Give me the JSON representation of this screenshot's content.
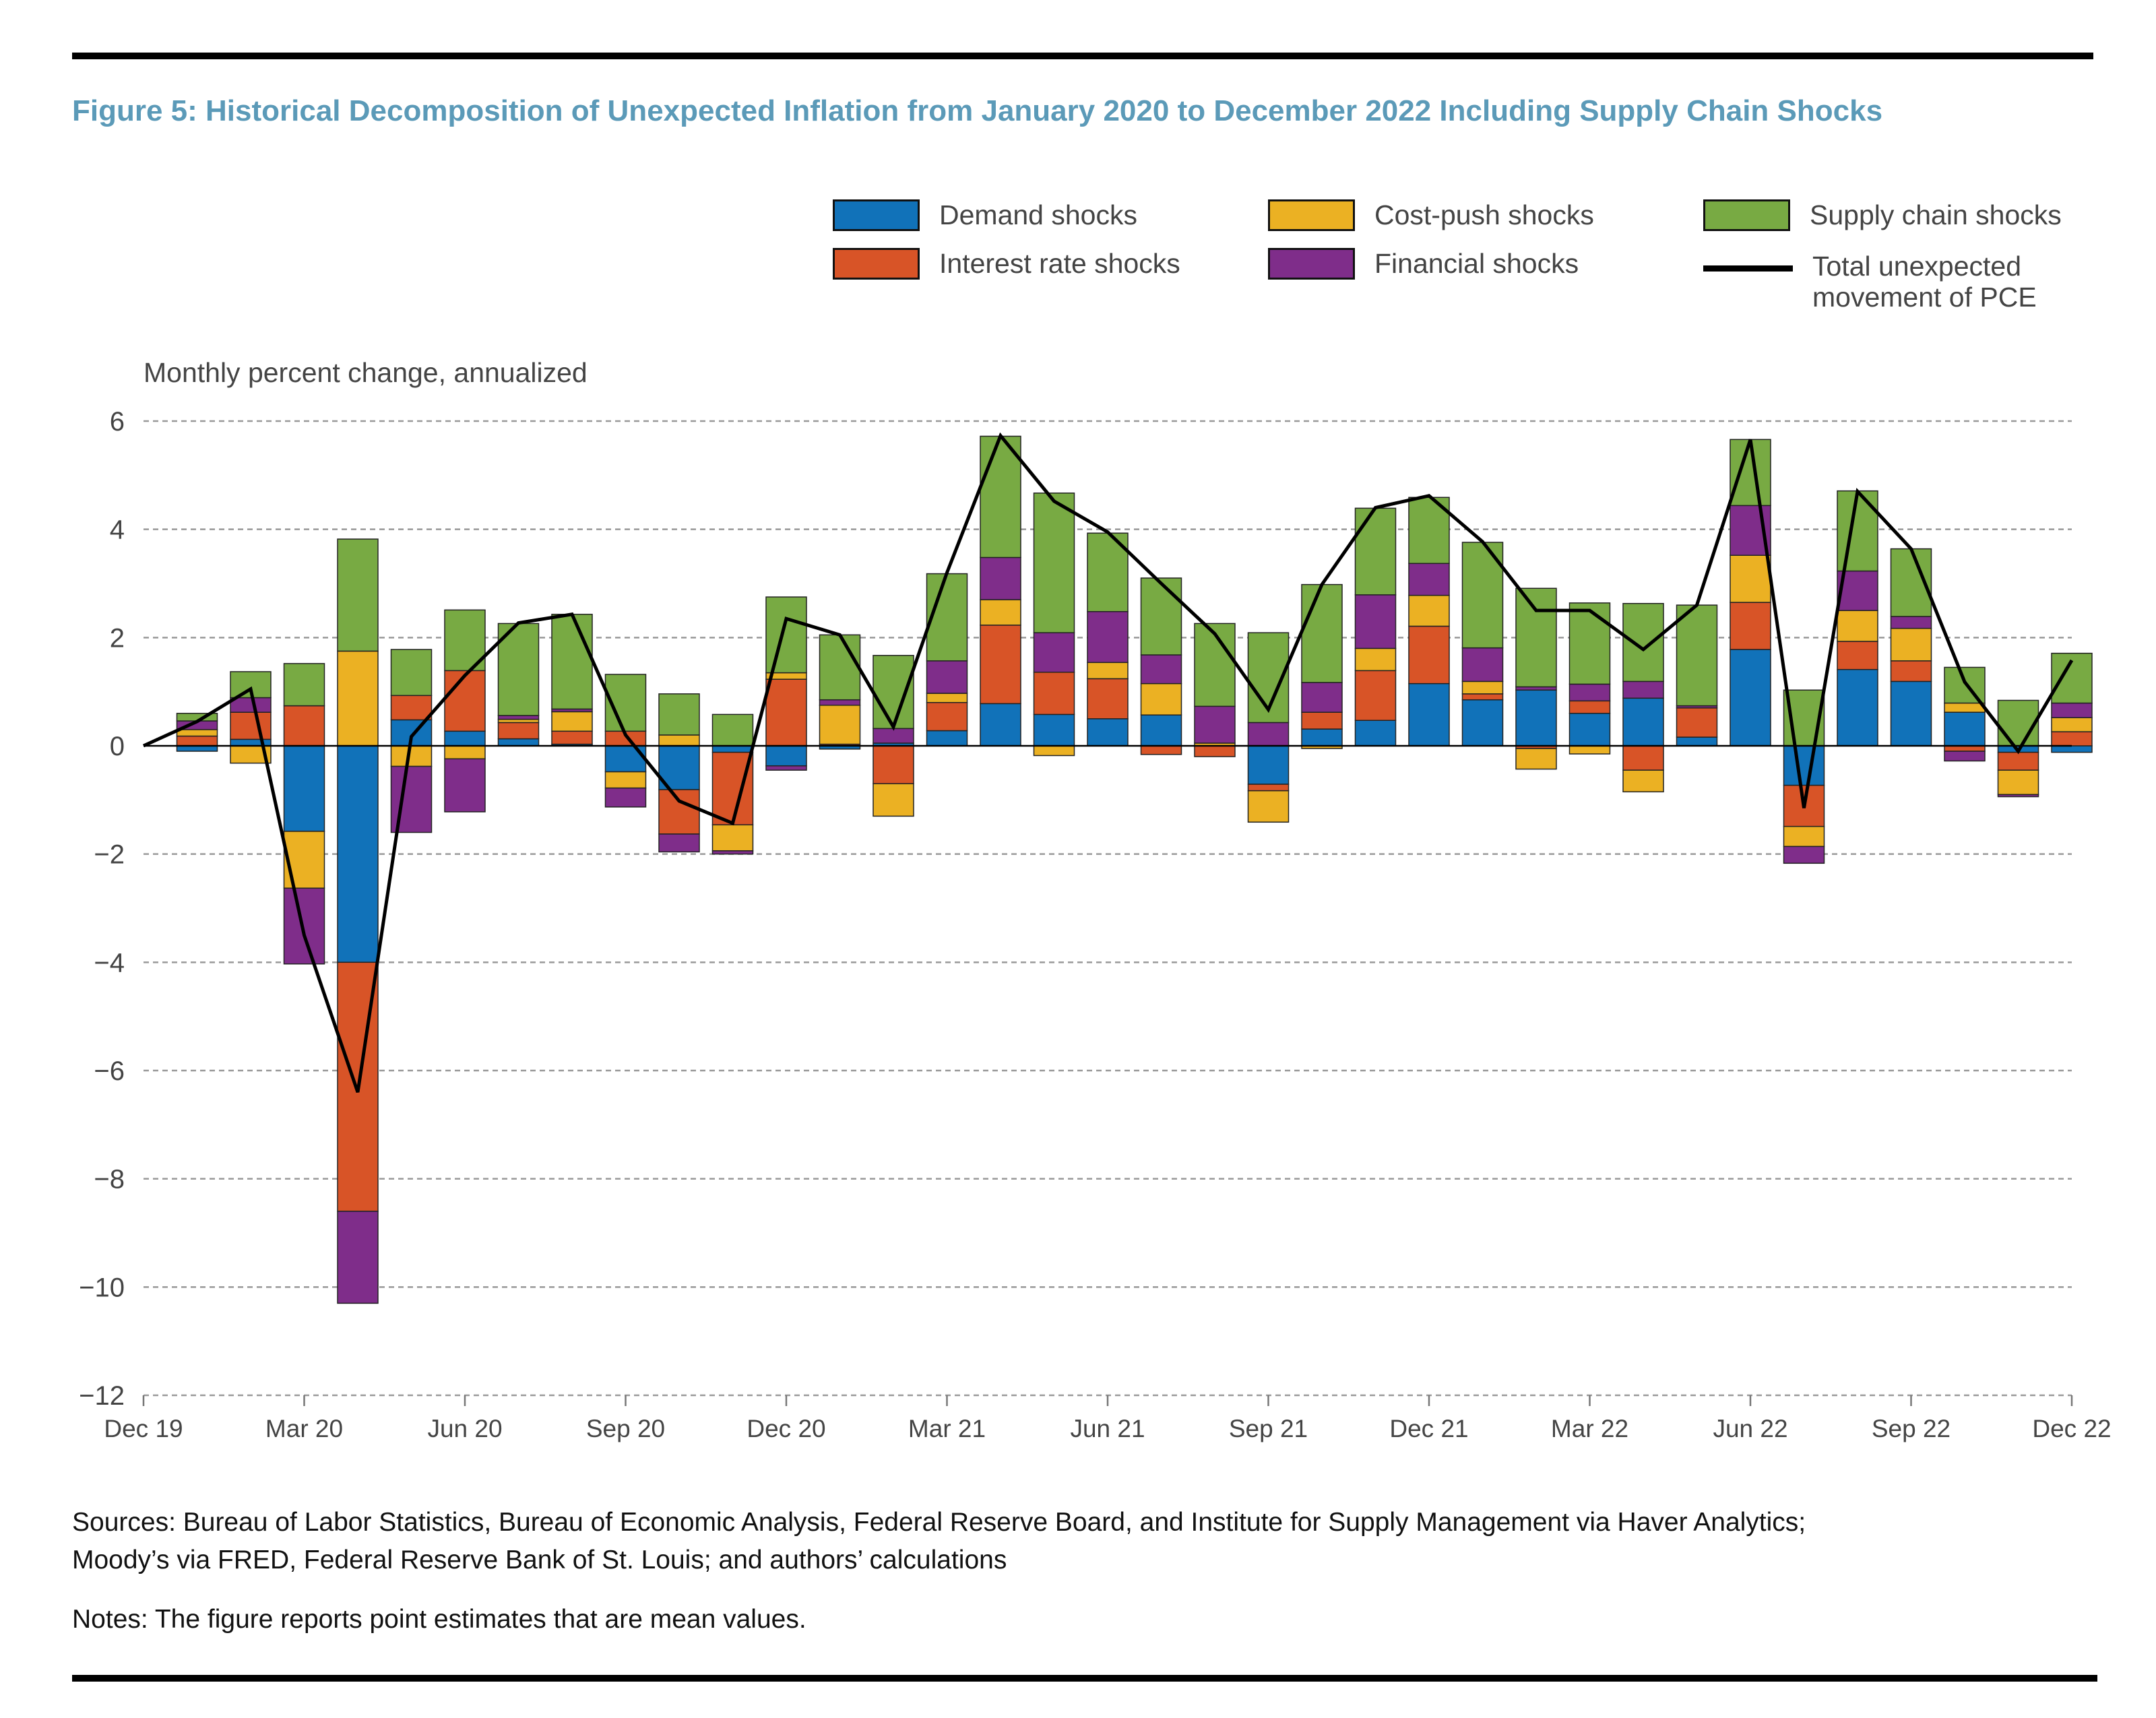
{
  "title": "Figure 5: Historical Decomposition of Unexpected Inflation from January 2020 to December 2022 Including Supply Chain Shocks",
  "sources": "Sources: Bureau of Labor Statistics, Bureau of Economic Analysis, Federal Reserve Board, and Institute for Supply Management via Haver Analytics;",
  "sources_line2": "Moody’s via FRED, Federal Reserve Bank of St. Louis; and authors’ calculations",
  "notes": "Notes: The figure reports point estimates that are mean values.",
  "chart_data": {
    "type": "bar",
    "stacked": true,
    "ylabel": "Monthly percent change, annualized",
    "ylim": [
      -12,
      6
    ],
    "yticks": [
      "6",
      "4",
      "2",
      "0",
      "−2",
      "−4",
      "−6",
      "−8",
      "−10",
      "−12"
    ],
    "ytick_values": [
      6,
      4,
      2,
      0,
      -2,
      -4,
      -6,
      -8,
      -10,
      -12
    ],
    "grid": true,
    "xtick_labels": [
      "Dec 19",
      "Mar 20",
      "Jun 20",
      "Sep 20",
      "Dec 20",
      "Mar 21",
      "Jun 21",
      "Sep 21",
      "Dec 21",
      "Mar 22",
      "Jun 22",
      "Sep 22",
      "Dec 22"
    ],
    "categories": [
      "Jan 20",
      "Feb 20",
      "Mar 20",
      "Apr 20",
      "May 20",
      "Jun 20",
      "Jul 20",
      "Aug 20",
      "Sep 20",
      "Oct 20",
      "Nov 20",
      "Dec 20",
      "Jan 21",
      "Feb 21",
      "Mar 21",
      "Apr 21",
      "May 21",
      "Jun 21",
      "Jul 21",
      "Aug 21",
      "Sep 21",
      "Oct 21",
      "Nov 21",
      "Dec 21",
      "Jan 22",
      "Feb 22",
      "Mar 22",
      "Apr 22",
      "May 22",
      "Jun 22",
      "Jul 22",
      "Aug 22",
      "Sep 22",
      "Oct 22",
      "Nov 22",
      "Dec 22"
    ],
    "series": [
      {
        "name": "Demand shocks",
        "color": "#1172b9",
        "values": [
          -0.1,
          0.12,
          -1.58,
          -4.0,
          0.48,
          0.27,
          0.13,
          0.03,
          -0.48,
          -0.81,
          -0.12,
          -0.37,
          -0.06,
          0.05,
          0.28,
          0.78,
          0.58,
          0.5,
          0.57,
          0,
          -0.71,
          0.31,
          0.47,
          1.15,
          0.85,
          1.03,
          0.6,
          0.88,
          0.16,
          1.78,
          -0.73,
          1.41,
          1.19,
          0.62,
          -0.12,
          -0.12
        ]
      },
      {
        "name": "Interest rate shocks",
        "color": "#d85427",
        "values": [
          0.18,
          0.5,
          0.74,
          -4.6,
          0.45,
          1.12,
          0.3,
          0.24,
          0.27,
          -0.82,
          -1.34,
          1.23,
          0.03,
          -0.7,
          0.52,
          1.45,
          0.78,
          0.74,
          -0.16,
          -0.2,
          -0.12,
          0.31,
          0.92,
          1.06,
          0.11,
          -0.05,
          0.23,
          -0.45,
          0.54,
          0.87,
          -0.76,
          0.52,
          0.38,
          -0.1,
          -0.33,
          0.26
        ]
      },
      {
        "name": "Cost-push shocks",
        "color": "#ebb123",
        "values": [
          0.12,
          -0.32,
          -1.05,
          1.75,
          -0.38,
          -0.24,
          0.06,
          0.36,
          -0.3,
          0.2,
          -0.48,
          0.12,
          0.72,
          -0.6,
          0.17,
          0.47,
          -0.18,
          0.3,
          0.58,
          0.05,
          -0.58,
          -0.05,
          0.41,
          0.57,
          0.23,
          -0.38,
          -0.15,
          -0.4,
          0,
          0.87,
          -0.37,
          0.57,
          0.6,
          0.17,
          -0.45,
          0.26
        ]
      },
      {
        "name": "Financial shocks",
        "color": "#7f2d8a",
        "values": [
          0.16,
          0.27,
          -1.4,
          -1.7,
          -1.22,
          -0.98,
          0.07,
          0.05,
          -0.35,
          -0.33,
          -0.06,
          -0.08,
          0.1,
          0.27,
          0.6,
          0.78,
          0.73,
          0.94,
          0.53,
          0.68,
          0.43,
          0.55,
          0.99,
          0.59,
          0.62,
          0.06,
          0.31,
          0.31,
          0.04,
          0.92,
          -0.31,
          0.73,
          0.22,
          -0.18,
          -0.04,
          0.27
        ]
      },
      {
        "name": "Supply chain shocks",
        "color": "#78aa43",
        "values": [
          0.14,
          0.48,
          0.78,
          2.07,
          0.85,
          1.12,
          1.7,
          1.75,
          1.05,
          0.76,
          0.58,
          1.4,
          1.2,
          1.35,
          1.61,
          2.24,
          2.58,
          1.45,
          1.42,
          1.53,
          1.66,
          1.81,
          1.6,
          1.22,
          1.95,
          1.82,
          1.5,
          1.44,
          1.86,
          1.22,
          1.03,
          1.48,
          1.25,
          0.66,
          0.84,
          0.92
        ]
      }
    ],
    "line": {
      "name": "Total unexpected\nmovement of PCE",
      "color": "#000000",
      "x": [
        "Dec 19",
        "Jan 20",
        "Feb 20",
        "Mar 20",
        "Apr 20",
        "May 20",
        "Jun 20",
        "Jul 20",
        "Aug 20",
        "Sep 20",
        "Oct 20",
        "Nov 20",
        "Dec 20",
        "Jan 21",
        "Feb 21",
        "Mar 21",
        "Apr 21",
        "May 21",
        "Jun 21",
        "Jul 21",
        "Aug 21",
        "Sep 21",
        "Oct 21",
        "Nov 21",
        "Dec 21",
        "Jan 22",
        "Feb 22",
        "Mar 22",
        "Apr 22",
        "May 22",
        "Jun 22",
        "Jul 22",
        "Aug 22",
        "Sep 22",
        "Oct 22",
        "Nov 22",
        "Dec 22"
      ],
      "values": [
        0,
        0.45,
        1.05,
        -3.5,
        -6.4,
        0.17,
        1.3,
        2.27,
        2.43,
        0.2,
        -1.02,
        -1.43,
        2.35,
        2.05,
        0.35,
        3.2,
        5.73,
        4.52,
        3.95,
        3.0,
        2.07,
        0.67,
        2.98,
        4.4,
        4.62,
        3.77,
        2.5,
        2.5,
        1.78,
        2.6,
        5.66,
        -1.15,
        4.7,
        3.64,
        1.18,
        -0.1,
        1.58
      ]
    },
    "legend_placement": "top-right"
  }
}
